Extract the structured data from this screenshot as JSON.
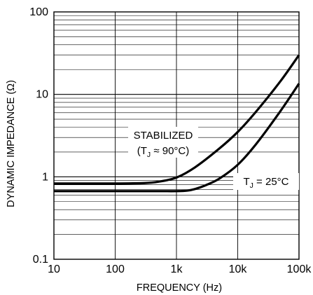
{
  "chart_data": {
    "type": "line",
    "title": "",
    "xlabel": "FREQUENCY (Hz)",
    "ylabel": "DYNAMIC IMPEDANCE (Ω)",
    "x_scale": "log",
    "y_scale": "log",
    "xlim": [
      10,
      100000
    ],
    "ylim": [
      0.1,
      100
    ],
    "x_ticks": [
      10,
      100,
      1000,
      10000,
      100000
    ],
    "x_tick_labels": [
      "10",
      "100",
      "1k",
      "10k",
      "100k"
    ],
    "y_ticks": [
      0.1,
      1,
      10,
      100
    ],
    "y_tick_labels": [
      "0.1",
      "1",
      "10",
      "100"
    ],
    "grid": true,
    "series": [
      {
        "x": [
          10,
          100,
          300,
          500,
          1000,
          2000,
          5000,
          10000,
          20000,
          50000,
          100000
        ],
        "y": [
          0.83,
          0.83,
          0.84,
          0.87,
          0.98,
          1.3,
          2.2,
          3.5,
          6.2,
          14.5,
          30
        ]
      },
      {
        "x": [
          10,
          100,
          500,
          1000,
          1500,
          2000,
          3000,
          5000,
          10000,
          20000,
          50000,
          100000
        ],
        "y": [
          0.67,
          0.67,
          0.67,
          0.67,
          0.68,
          0.71,
          0.79,
          0.95,
          1.4,
          2.5,
          6.3,
          13.5
        ]
      }
    ],
    "annotations": {
      "stabilized_label": "STABILIZED",
      "stabilized_cond_open": "(T",
      "stabilized_cond_sub": "J",
      "stabilized_cond_rest": " ≈ 90°C)",
      "tj_label_main": "T",
      "tj_label_sub": "J",
      "tj_label_rest": " = 25°C"
    }
  }
}
